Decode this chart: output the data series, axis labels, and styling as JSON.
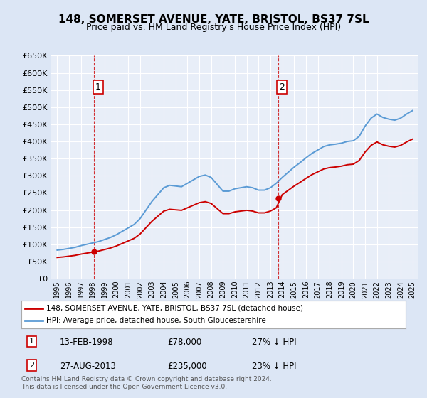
{
  "title": "148, SOMERSET AVENUE, YATE, BRISTOL, BS37 7SL",
  "subtitle": "Price paid vs. HM Land Registry's House Price Index (HPI)",
  "legend_line1": "148, SOMERSET AVENUE, YATE, BRISTOL, BS37 7SL (detached house)",
  "legend_line2": "HPI: Average price, detached house, South Gloucestershire",
  "footnote": "Contains HM Land Registry data © Crown copyright and database right 2024.\nThis data is licensed under the Open Government Licence v3.0.",
  "annotation1_label": "1",
  "annotation1_date": "13-FEB-1998",
  "annotation1_price": "£78,000",
  "annotation1_hpi": "27% ↓ HPI",
  "annotation2_label": "2",
  "annotation2_date": "27-AUG-2013",
  "annotation2_price": "£235,000",
  "annotation2_hpi": "23% ↓ HPI",
  "point1_x": 1998.12,
  "point1_y": 78000,
  "point2_x": 2013.65,
  "point2_y": 235000,
  "ylim": [
    0,
    650000
  ],
  "yticks": [
    0,
    50000,
    100000,
    150000,
    200000,
    250000,
    300000,
    350000,
    400000,
    450000,
    500000,
    550000,
    600000,
    650000
  ],
  "xlim_start": 1994.5,
  "xlim_end": 2025.5,
  "bg_color": "#dce6f5",
  "plot_bg": "#e8eef8",
  "red_color": "#cc0000",
  "blue_color": "#5b9bd5",
  "grid_color": "#ffffff"
}
